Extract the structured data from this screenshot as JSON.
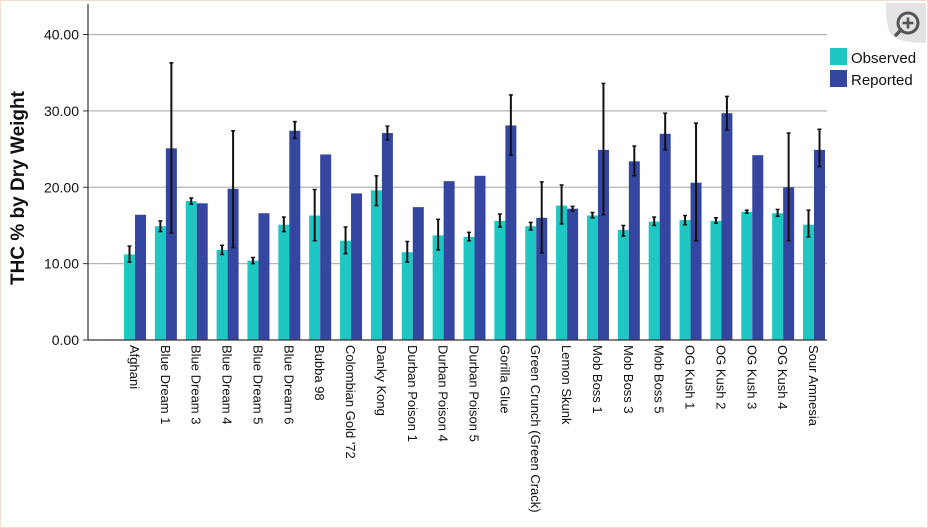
{
  "chart_data": {
    "type": "bar",
    "ylabel": "THC % by Dry Weight",
    "xlabel": "",
    "ylim": [
      0,
      44
    ],
    "yticks": [
      "0.00",
      "10.00",
      "20.00",
      "30.00",
      "40.00"
    ],
    "ytick_values": [
      0,
      10,
      20,
      30,
      40
    ],
    "grid": true,
    "legend_position": "top-right",
    "categories": [
      "Afghani",
      "Blue Dream 1",
      "Blue Dream 3",
      "Blue Dream 4",
      "Blue Dream 5",
      "Blue Dream 6",
      "Bubba 98",
      "Colombian Gold '72",
      "Danky Kong",
      "Durban Poison 1",
      "Durban Poison 4",
      "Durban Poison 5",
      "Gorilla Glue",
      "Green Crunch (Green Crack)",
      "Lemon Skunk",
      "Mob Boss 1",
      "Mob Boss 3",
      "Mob Boss 5",
      "OG Kush 1",
      "OG Kush 2",
      "OG Kush 3",
      "OG Kush 4",
      "Sour Amnesia"
    ],
    "series": [
      {
        "name": "Observed",
        "color": "#1fc7c3",
        "values": [
          11.2,
          14.9,
          18.2,
          11.8,
          10.4,
          15.1,
          16.3,
          13.0,
          19.6,
          11.5,
          13.7,
          13.5,
          15.6,
          14.9,
          17.6,
          16.3,
          14.4,
          15.5,
          15.7,
          15.6,
          16.8,
          16.6,
          15.1
        ],
        "error_low": [
          10.2,
          14.2,
          17.8,
          11.2,
          10.0,
          14.2,
          13.0,
          11.3,
          17.6,
          10.2,
          11.8,
          13.0,
          14.8,
          14.4,
          15.2,
          16.0,
          13.6,
          15.0,
          15.1,
          15.3,
          16.6,
          16.2,
          13.5
        ],
        "error_high": [
          12.3,
          15.6,
          18.6,
          12.4,
          10.8,
          16.1,
          19.7,
          14.8,
          21.5,
          12.9,
          15.8,
          14.1,
          16.5,
          15.4,
          20.3,
          16.7,
          15.0,
          16.1,
          16.3,
          16.0,
          17.0,
          17.1,
          17.0
        ]
      },
      {
        "name": "Reported",
        "color": "#3446a0",
        "values": [
          16.4,
          25.1,
          17.9,
          19.8,
          16.6,
          27.4,
          24.3,
          19.2,
          27.1,
          17.4,
          20.8,
          21.5,
          28.1,
          16.0,
          17.2,
          24.9,
          23.4,
          27.0,
          20.6,
          29.7,
          24.2,
          20.0,
          24.9
        ],
        "error_low": [
          null,
          14.0,
          null,
          12.1,
          null,
          26.4,
          null,
          null,
          26.2,
          null,
          null,
          null,
          24.2,
          11.4,
          16.9,
          16.4,
          21.5,
          24.9,
          13.0,
          27.5,
          null,
          13.0,
          22.7
        ],
        "error_high": [
          null,
          36.3,
          null,
          27.4,
          null,
          28.6,
          null,
          null,
          28.0,
          null,
          null,
          null,
          32.1,
          20.7,
          17.5,
          33.6,
          25.4,
          29.7,
          28.4,
          31.9,
          null,
          27.1,
          27.6
        ]
      }
    ]
  },
  "ui": {
    "zoom_icon": "zoom-in-icon",
    "background": "#ffffff",
    "grid_color": "#b5b5b5",
    "axis_color": "#333333",
    "error_bar_color": "#111111"
  }
}
